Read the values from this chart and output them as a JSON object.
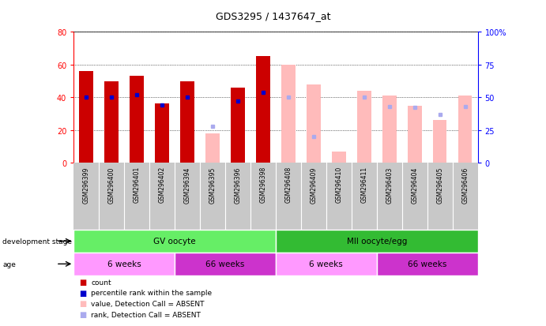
{
  "title": "GDS3295 / 1437647_at",
  "samples": [
    "GSM296399",
    "GSM296400",
    "GSM296401",
    "GSM296402",
    "GSM296394",
    "GSM296395",
    "GSM296396",
    "GSM296398",
    "GSM296408",
    "GSM296409",
    "GSM296410",
    "GSM296411",
    "GSM296403",
    "GSM296404",
    "GSM296405",
    "GSM296406"
  ],
  "count_present": [
    56,
    50,
    53,
    36,
    50,
    null,
    46,
    65,
    null,
    null,
    null,
    null,
    null,
    null,
    null,
    null
  ],
  "count_absent": [
    null,
    null,
    null,
    null,
    null,
    18,
    null,
    null,
    60,
    48,
    7,
    44,
    41,
    35,
    26,
    41
  ],
  "blue_dot_present": [
    50,
    50,
    52,
    44,
    50,
    null,
    47,
    54,
    null,
    null,
    null,
    null,
    null,
    null,
    null,
    null
  ],
  "blue_dot_absent": [
    null,
    null,
    null,
    null,
    null,
    28,
    null,
    null,
    50,
    20,
    null,
    50,
    43,
    42,
    37,
    43
  ],
  "dev_stage_groups": [
    {
      "label": "GV oocyte",
      "start": 0,
      "end": 8,
      "color": "#66ee66"
    },
    {
      "label": "MII oocyte/egg",
      "start": 8,
      "end": 16,
      "color": "#33bb33"
    }
  ],
  "age_groups": [
    {
      "label": "6 weeks",
      "start": 0,
      "end": 4,
      "color": "#ff99ff"
    },
    {
      "label": "66 weeks",
      "start": 4,
      "end": 8,
      "color": "#cc33cc"
    },
    {
      "label": "6 weeks",
      "start": 8,
      "end": 12,
      "color": "#ff99ff"
    },
    {
      "label": "66 weeks",
      "start": 12,
      "end": 16,
      "color": "#cc33cc"
    }
  ],
  "color_count_present": "#cc0000",
  "color_count_absent": "#ffbbbb",
  "color_rank_present": "#0000cc",
  "color_rank_absent": "#aaaaee",
  "xtick_bg": "#c8c8c8"
}
